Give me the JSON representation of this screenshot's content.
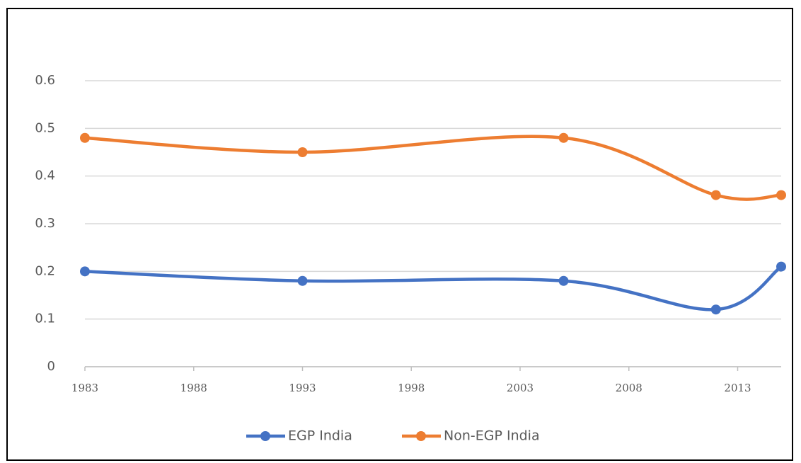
{
  "chart_data": {
    "type": "line",
    "x": [
      1983,
      1993,
      2005,
      2012,
      2015
    ],
    "series": [
      {
        "name": "EGP India",
        "color": "#4472c4",
        "values": [
          0.2,
          0.18,
          0.18,
          0.12,
          0.21
        ]
      },
      {
        "name": "Non-EGP India",
        "color": "#ed7d31",
        "values": [
          0.48,
          0.45,
          0.48,
          0.36,
          0.36
        ]
      }
    ],
    "xlim": [
      1983,
      2015
    ],
    "xticks": [
      1983,
      1988,
      1993,
      1998,
      2003,
      2008,
      2013
    ],
    "ylim": [
      0,
      0.6
    ],
    "yticks": [
      0,
      0.1,
      0.2,
      0.3,
      0.4,
      0.5,
      0.6
    ],
    "grid": true,
    "smooth": true,
    "legend": "bottom"
  }
}
